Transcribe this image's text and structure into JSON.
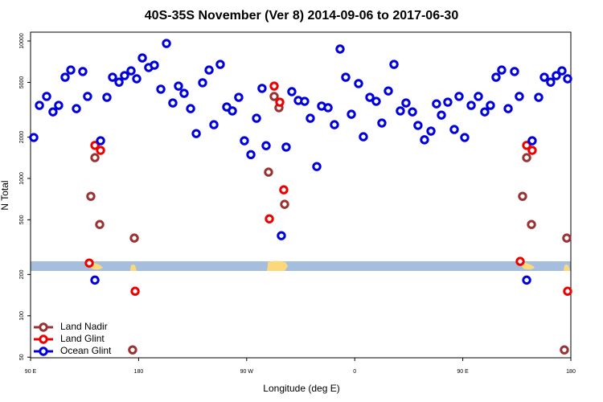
{
  "chart_data": {
    "type": "scatter",
    "title": "40S-35S November (Ver 8)   2014-09-06 to 2017-06-30",
    "xlabel": "Longitude (deg E)",
    "ylabel": "N Total",
    "xlim": [
      90,
      540
    ],
    "ylim": [
      49.5,
      11600
    ],
    "log_y": true,
    "legend": "lower left",
    "xticks": [
      {
        "value": 90,
        "label": "90 E"
      },
      180,
      {
        "value": 270,
        "label": "90 W"
      },
      {
        "value": 360,
        "label": "0"
      },
      {
        "value": 450,
        "label": "90 E"
      },
      {
        "value": 540,
        "label": "180"
      }
    ],
    "yticks": [
      50,
      100,
      200,
      500,
      1000,
      2000,
      5000,
      10000
    ],
    "series": [
      {
        "name": "Land Nadir",
        "color": "#993333",
        "x": [
          140.2,
          143.6,
          147.6,
          176.4,
          175.0,
          288.2,
          292.9,
          296.9,
          301.6,
          499.8,
          503.2,
          507.2,
          536.6,
          534.6
        ],
        "values": [
          741,
          1416,
          462,
          368,
          56.5,
          1111,
          3950,
          3270,
          648,
          741,
          1416,
          462,
          368,
          56.5
        ]
      },
      {
        "name": "Land Glint",
        "color": "#ee0000",
        "x": [
          138.9,
          143.6,
          148.3,
          177.1,
          292.9,
          297.6,
          300.9,
          288.9,
          497.8,
          503.2,
          507.8,
          537.3
        ],
        "values": [
          242,
          1740,
          1600,
          151,
          4700,
          3590,
          826,
          508,
          249,
          1740,
          1600,
          151
        ]
      },
      {
        "name": "Ocean Glint",
        "color": "#0000dd",
        "x": [
          92.7,
          97.4,
          103.4,
          108.7,
          113.4,
          118.8,
          123.5,
          128.2,
          133.5,
          137.5,
          143.6,
          148.3,
          153.6,
          158.3,
          163.7,
          168.3,
          173.7,
          178.4,
          183.1,
          188.4,
          193.1,
          198.5,
          203.2,
          208.5,
          213.2,
          217.9,
          223.3,
          228.0,
          233.3,
          238.7,
          242.7,
          248.0,
          253.4,
          258.1,
          263.4,
          268.1,
          273.5,
          278.2,
          282.8,
          286.2,
          298.9,
          302.9,
          307.6,
          313.0,
          318.3,
          323.0,
          328.4,
          332.4,
          337.8,
          343.1,
          347.8,
          352.5,
          357.2,
          363.2,
          367.2,
          372.6,
          377.9,
          382.6,
          388.0,
          392.7,
          398.0,
          402.7,
          408.1,
          412.7,
          418.1,
          423.5,
          428.1,
          432.2,
          437.5,
          442.9,
          446.9,
          451.6,
          457.0,
          463.0,
          468.3,
          473.0,
          477.7,
          482.4,
          487.8,
          493.1,
          497.1,
          503.2,
          507.8,
          513.2,
          517.9,
          523.2,
          527.9,
          532.6,
          537.3
        ],
        "values": [
          1985,
          3400,
          3950,
          3050,
          3400,
          5450,
          6150,
          3220,
          6000,
          3950,
          182,
          1880,
          3890,
          5450,
          5020,
          5600,
          6070,
          5310,
          7530,
          6410,
          6670,
          4460,
          9600,
          3540,
          4700,
          4160,
          3220,
          2120,
          4970,
          6150,
          2460,
          6760,
          3310,
          3100,
          3890,
          1880,
          1490,
          2740,
          4520,
          1730,
          383,
          1690,
          4280,
          3690,
          3640,
          2740,
          1220,
          3360,
          3270,
          2460,
          8740,
          5450,
          2930,
          4900,
          2010,
          3890,
          3640,
          2530,
          4330,
          6760,
          3100,
          3540,
          3050,
          2430,
          1910,
          2210,
          3490,
          2890,
          3590,
          2270,
          3950,
          1985,
          3400,
          3950,
          3050,
          3400,
          5450,
          6150,
          3220,
          6000,
          3950,
          182,
          1880,
          3890,
          5450,
          5020,
          5600,
          6070,
          5310
        ]
      }
    ]
  }
}
